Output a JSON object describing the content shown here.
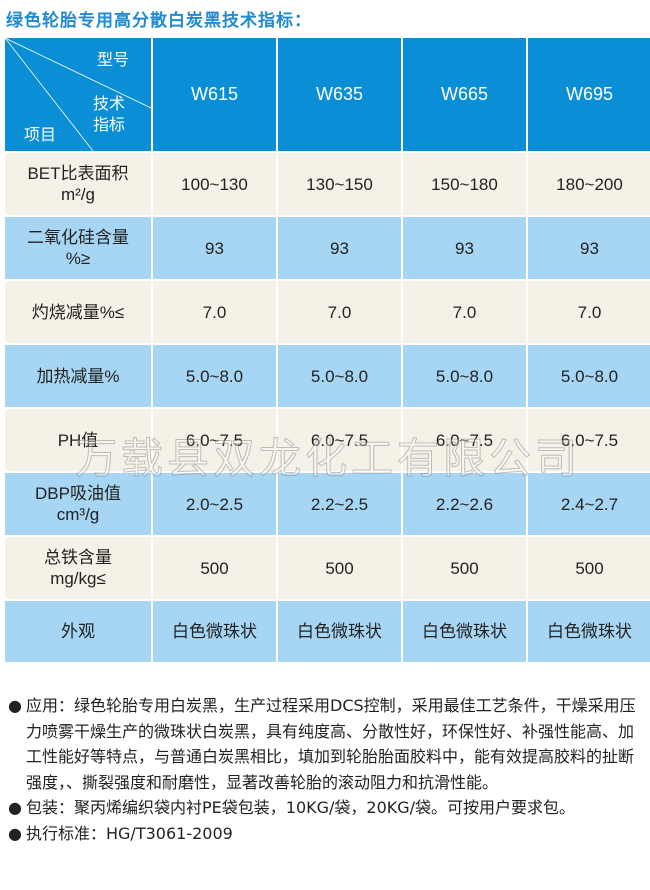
{
  "title": "绿色轮胎专用高分散白炭黑技术指标：",
  "table": {
    "corner": {
      "model": "型号",
      "spec_line1": "技术",
      "spec_line2": "指标",
      "item": "项目"
    },
    "models": [
      "W615",
      "W635",
      "W665",
      "W695"
    ],
    "rows": [
      {
        "label": "BET比表面积",
        "unit": "m²/g",
        "values": [
          "100~130",
          "130~150",
          "150~180",
          "180~200"
        ]
      },
      {
        "label": "二氧化硅含量",
        "unit": "%≥",
        "values": [
          "93",
          "93",
          "93",
          "93"
        ]
      },
      {
        "label": "灼烧减量%≤",
        "unit": "",
        "values": [
          "7.0",
          "7.0",
          "7.0",
          "7.0"
        ]
      },
      {
        "label": "加热减量%",
        "unit": "",
        "values": [
          "5.0~8.0",
          "5.0~8.0",
          "5.0~8.0",
          "5.0~8.0"
        ]
      },
      {
        "label": "PH值",
        "unit": "",
        "values": [
          "6.0~7.5",
          "6.0~7.5",
          "6.0~7.5",
          "6.0~7.5"
        ]
      },
      {
        "label": "DBP吸油值",
        "unit": "cm³/g",
        "values": [
          "2.0~2.5",
          "2.2~2.5",
          "2.2~2.6",
          "2.4~2.7"
        ]
      },
      {
        "label": "总铁含量",
        "unit": "mg/kg≤",
        "values": [
          "500",
          "500",
          "500",
          "500"
        ]
      },
      {
        "label": "外观",
        "unit": "",
        "values": [
          "白色微珠状",
          "白色微珠状",
          "白色微珠状",
          "白色微珠状"
        ]
      }
    ]
  },
  "watermark": "万载县双龙化工有限公司",
  "notes": [
    {
      "bullet": "●",
      "text": "应用：绿色轮胎专用白炭黑，生产过程采用DCS控制，采用最佳工艺条件，干燥采用压力喷雾干燥生产的微珠状白炭黑，具有纯度高、分散性好，环保性好、补强性能高、加工性能好等特点，与普通白炭黑相比，填加到轮胎胎面胶料中，能有效提高胶料的扯断强度，、撕裂强度和耐磨性，显著改善轮胎的滚动阻力和抗滑性能。"
    },
    {
      "bullet": "●",
      "text": "包装：聚丙烯编织袋内衬PE袋包装，10KG/袋，20KG/袋。可按用户要求包。"
    },
    {
      "bullet": "●",
      "text": "执行标准：HG/T3061-2009"
    }
  ],
  "colors": {
    "header": "#0a8fd6",
    "row_cream": "#f6f1e6",
    "row_blue": "#a6d6f3",
    "title": "#1f8bd0"
  }
}
